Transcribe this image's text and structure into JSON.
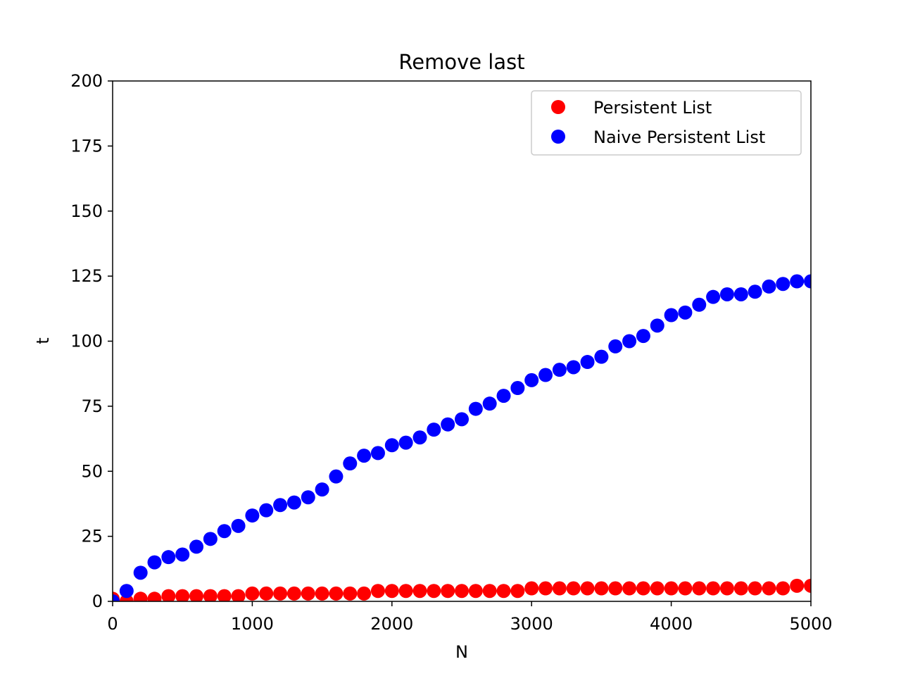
{
  "chart_data": {
    "type": "scatter",
    "title": "Remove last",
    "xlabel": "N",
    "ylabel": "t",
    "xlim": [
      0,
      5000
    ],
    "ylim": [
      0,
      200
    ],
    "xticks": [
      0,
      1000,
      2000,
      3000,
      4000,
      5000
    ],
    "yticks": [
      0,
      25,
      50,
      75,
      100,
      125,
      150,
      175,
      200
    ],
    "grid": false,
    "legend_position": "top-right",
    "x": [
      0,
      100,
      200,
      300,
      400,
      500,
      600,
      700,
      800,
      900,
      1000,
      1100,
      1200,
      1300,
      1400,
      1500,
      1600,
      1700,
      1800,
      1900,
      2000,
      2100,
      2200,
      2300,
      2400,
      2500,
      2600,
      2700,
      2800,
      2900,
      3000,
      3100,
      3200,
      3300,
      3400,
      3500,
      3600,
      3700,
      3800,
      3900,
      4000,
      4100,
      4200,
      4300,
      4400,
      4500,
      4600,
      4700,
      4800,
      4900,
      5000
    ],
    "series": [
      {
        "name": "Persistent List",
        "color": "#ff0000",
        "values": [
          1,
          0,
          1,
          1,
          2,
          2,
          2,
          2,
          2,
          2,
          3,
          3,
          3,
          3,
          3,
          3,
          3,
          3,
          3,
          4,
          4,
          4,
          4,
          4,
          4,
          4,
          4,
          4,
          4,
          4,
          5,
          5,
          5,
          5,
          5,
          5,
          5,
          5,
          5,
          5,
          5,
          5,
          5,
          5,
          5,
          5,
          5,
          5,
          5,
          6,
          6
        ]
      },
      {
        "name": "Naive Persistent List",
        "color": "#0000ff",
        "values": [
          0,
          4,
          11,
          15,
          17,
          18,
          21,
          24,
          27,
          29,
          33,
          35,
          37,
          38,
          40,
          43,
          48,
          53,
          56,
          57,
          60,
          61,
          63,
          66,
          68,
          70,
          74,
          76,
          79,
          82,
          85,
          87,
          89,
          90,
          92,
          94,
          98,
          100,
          102,
          106,
          110,
          111,
          114,
          117,
          118,
          118,
          119,
          121,
          122,
          123,
          123
        ]
      }
    ]
  }
}
